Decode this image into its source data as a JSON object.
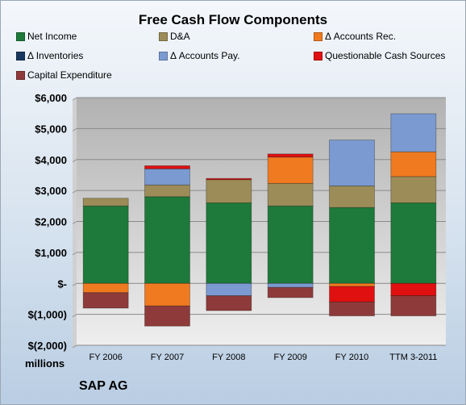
{
  "chart_data": {
    "type": "bar",
    "stacked": true,
    "title": "Free Cash Flow Components",
    "units_label": "millions",
    "footer": "SAP AG",
    "categories": [
      "FY 2006",
      "FY 2007",
      "FY 2008",
      "FY 2009",
      "FY 2010",
      "TTM 3-2011"
    ],
    "ylim": [
      -2000,
      6000
    ],
    "yticks": [
      -2000,
      -1000,
      0,
      1000,
      2000,
      3000,
      4000,
      5000,
      6000
    ],
    "ytick_labels": [
      "$(2,000)",
      "$(1,000)",
      "$-",
      "$1,000",
      "$2,000",
      "$3,000",
      "$4,000",
      "$5,000",
      "$6,000"
    ],
    "grid": true,
    "legend_position": "top",
    "series": [
      {
        "name": "Net Income",
        "color": "#1d7a3a",
        "values": [
          2500,
          2800,
          2600,
          2500,
          2450,
          2600
        ]
      },
      {
        "name": "D&A",
        "color": "#9c8c58",
        "values": [
          250,
          380,
          750,
          730,
          700,
          850
        ]
      },
      {
        "name": "Δ Accounts Rec.",
        "color": "#f07a20",
        "values": [
          -300,
          -730,
          0,
          850,
          -100,
          800
        ]
      },
      {
        "name": "Δ Inventories",
        "color": "#17375e",
        "values": [
          0,
          0,
          0,
          0,
          0,
          0
        ]
      },
      {
        "name": "Δ Accounts Pay.",
        "color": "#7b9ad1",
        "values": [
          0,
          520,
          -400,
          -130,
          1480,
          1230
        ]
      },
      {
        "name": "Questionable Cash Sources",
        "color": "#e01010",
        "values": [
          0,
          100,
          40,
          100,
          -500,
          -400
        ]
      },
      {
        "name": "Capital Expenditure",
        "color": "#8f3a3a",
        "values": [
          -500,
          -650,
          -480,
          -330,
          -450,
          -650
        ]
      }
    ]
  }
}
